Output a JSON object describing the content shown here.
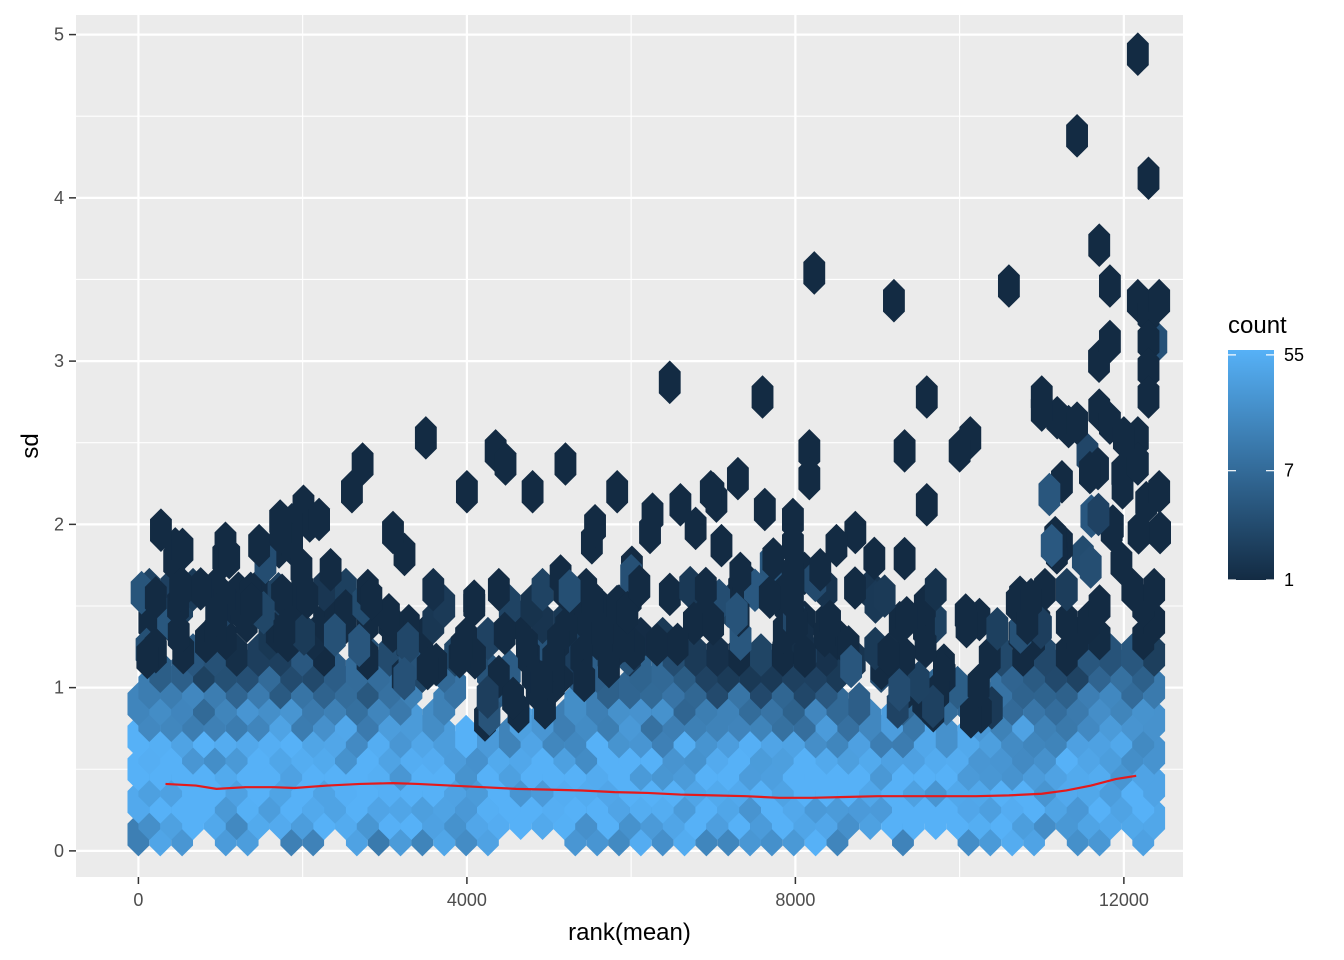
{
  "chart_data": {
    "type": "hexbin",
    "title": "",
    "xlabel": "rank(mean)",
    "ylabel": "sd",
    "xlim": [
      -760,
      12720
    ],
    "ylim": [
      -0.16,
      5.12
    ],
    "x_ticks": [
      0,
      4000,
      8000,
      12000
    ],
    "x_tick_labels": [
      "0",
      "4000",
      "8000",
      "12000"
    ],
    "y_ticks": [
      0,
      1,
      2,
      3,
      4,
      5
    ],
    "y_tick_labels": [
      "0",
      "1",
      "2",
      "3",
      "4",
      "5"
    ],
    "grid": true,
    "legend": {
      "title": "count",
      "placement": "right",
      "scale": "log",
      "breaks": [
        1,
        7,
        55
      ],
      "break_labels": [
        "1",
        "7",
        "55"
      ],
      "min": 1,
      "max": 60,
      "color_low": "#132B43",
      "color_high": "#56B1F7"
    },
    "hex_cell": {
      "x_width": 266,
      "y_height": 0.2
    },
    "density_profile": {
      "x": [
        0,
        1000,
        2000,
        3000,
        4000,
        5000,
        6000,
        7000,
        8000,
        9000,
        10000,
        11000,
        12000
      ],
      "sd_center": [
        0.45,
        0.42,
        0.42,
        0.43,
        0.42,
        0.4,
        0.38,
        0.37,
        0.35,
        0.35,
        0.36,
        0.38,
        0.45
      ]
    },
    "outliers": [
      {
        "x": 3500,
        "y": 2.53
      },
      {
        "x": 4350,
        "y": 2.45
      },
      {
        "x": 4470,
        "y": 2.37
      },
      {
        "x": 2730,
        "y": 2.37
      },
      {
        "x": 5200,
        "y": 2.37
      },
      {
        "x": 6470,
        "y": 2.87
      },
      {
        "x": 7600,
        "y": 2.78
      },
      {
        "x": 7300,
        "y": 2.28
      },
      {
        "x": 8170,
        "y": 2.45
      },
      {
        "x": 8170,
        "y": 2.28
      },
      {
        "x": 8230,
        "y": 3.54
      },
      {
        "x": 9200,
        "y": 3.37
      },
      {
        "x": 9330,
        "y": 2.45
      },
      {
        "x": 9600,
        "y": 2.78
      },
      {
        "x": 10600,
        "y": 3.46
      },
      {
        "x": 11000,
        "y": 2.78
      },
      {
        "x": 11430,
        "y": 4.38
      },
      {
        "x": 11700,
        "y": 3.71
      },
      {
        "x": 11830,
        "y": 3.46
      },
      {
        "x": 11830,
        "y": 3.12
      },
      {
        "x": 12170,
        "y": 4.88
      },
      {
        "x": 12300,
        "y": 4.12
      },
      {
        "x": 12170,
        "y": 3.37
      },
      {
        "x": 12300,
        "y": 3.29
      },
      {
        "x": 12430,
        "y": 3.37
      },
      {
        "x": 12300,
        "y": 3.12
      },
      {
        "x": 12300,
        "y": 2.95
      },
      {
        "x": 12300,
        "y": 2.78
      },
      {
        "x": 12170,
        "y": 2.53
      },
      {
        "x": 12170,
        "y": 2.37
      },
      {
        "x": 11700,
        "y": 2.7
      },
      {
        "x": 11830,
        "y": 2.62
      },
      {
        "x": 11430,
        "y": 2.62
      },
      {
        "x": 11000,
        "y": 2.7
      },
      {
        "x": 12000,
        "y": 2.53
      },
      {
        "x": 12430,
        "y": 2.2
      },
      {
        "x": 4800,
        "y": 2.2
      },
      {
        "x": 5830,
        "y": 2.2
      },
      {
        "x": 6970,
        "y": 2.2
      },
      {
        "x": 2200,
        "y": 2.03
      },
      {
        "x": 2600,
        "y": 2.2
      },
      {
        "x": 4000,
        "y": 2.2
      },
      {
        "x": 6600,
        "y": 2.12
      },
      {
        "x": 9600,
        "y": 2.12
      },
      {
        "x": 10130,
        "y": 2.53
      },
      {
        "x": 10000,
        "y": 2.45
      },
      {
        "x": 7970,
        "y": 2.03
      },
      {
        "x": 8730,
        "y": 1.95
      },
      {
        "x": 8500,
        "y": 1.87
      },
      {
        "x": 7100,
        "y": 1.87
      },
      {
        "x": 7970,
        "y": 1.87
      },
      {
        "x": 9330,
        "y": 1.79
      },
      {
        "x": 6100,
        "y": 1.62
      },
      {
        "x": 7970,
        "y": 1.7
      },
      {
        "x": 7970,
        "y": 1.53
      },
      {
        "x": 7330,
        "y": 1.7
      },
      {
        "x": 6230,
        "y": 1.95
      },
      {
        "x": 1470,
        "y": 1.87
      },
      {
        "x": 1730,
        "y": 1.95
      },
      {
        "x": 3100,
        "y": 1.95
      }
    ],
    "smooth_line": {
      "color": "#E41A1C",
      "x": [
        330,
        700,
        950,
        1300,
        1650,
        1900,
        2300,
        2700,
        3100,
        3400,
        3800,
        4200,
        4600,
        5000,
        5400,
        5800,
        6200,
        6600,
        7000,
        7400,
        7800,
        8200,
        8600,
        9000,
        9400,
        9800,
        10200,
        10600,
        11000,
        11300,
        11600,
        11900,
        12150
      ],
      "y": [
        0.41,
        0.4,
        0.38,
        0.39,
        0.39,
        0.385,
        0.4,
        0.41,
        0.415,
        0.41,
        0.4,
        0.39,
        0.38,
        0.375,
        0.37,
        0.36,
        0.355,
        0.345,
        0.34,
        0.335,
        0.325,
        0.325,
        0.33,
        0.335,
        0.335,
        0.335,
        0.335,
        0.34,
        0.35,
        0.37,
        0.4,
        0.44,
        0.46
      ]
    }
  }
}
